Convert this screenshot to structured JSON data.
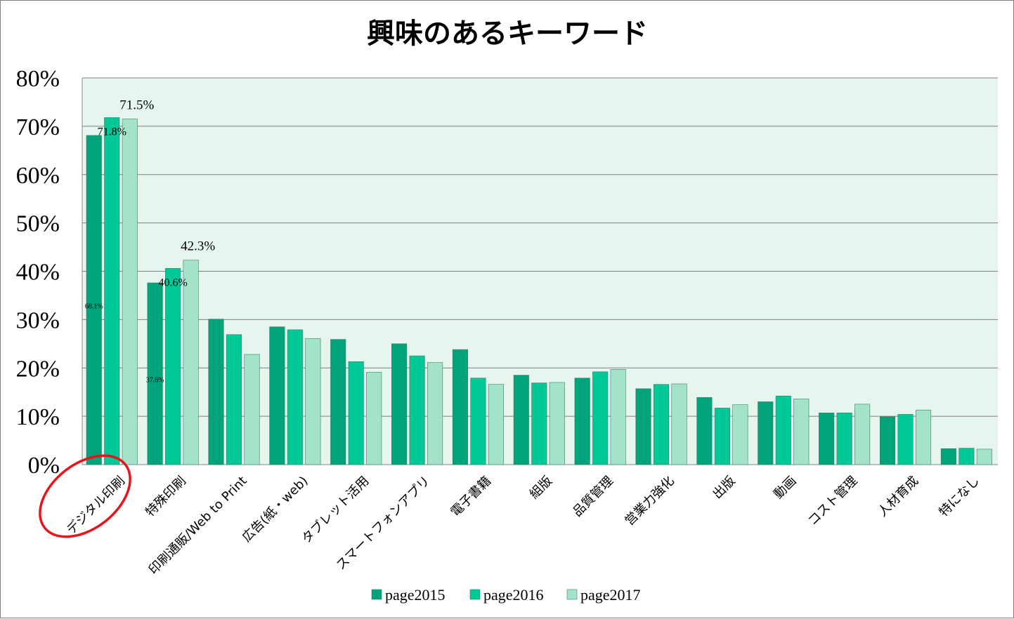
{
  "chart_data": {
    "type": "bar",
    "title": "興味のあるキーワード",
    "xlabel": "",
    "ylabel": "",
    "ylim": [
      0,
      80
    ],
    "yticks": [
      "0%",
      "10%",
      "20%",
      "30%",
      "40%",
      "50%",
      "60%",
      "70%",
      "80%"
    ],
    "grid": true,
    "legend_position": "bottom",
    "categories": [
      "デジタル印刷",
      "特殊印刷",
      "印刷通販/Web to Print",
      "広告(紙・web)",
      "タブレット活用",
      "スマートフォンアプリ",
      "電子書籍",
      "組版",
      "品質管理",
      "営業力強化",
      "出版",
      "動画",
      "コスト管理",
      "人材育成",
      "特になし"
    ],
    "series": [
      {
        "name": "page2015",
        "color": "#00a37a",
        "values": [
          68.1,
          37.6,
          30.1,
          28.5,
          25.9,
          25.0,
          23.8,
          18.5,
          17.9,
          15.7,
          13.9,
          13.0,
          10.7,
          9.9,
          3.3
        ]
      },
      {
        "name": "page2016",
        "color": "#00c997",
        "values": [
          71.8,
          40.6,
          26.9,
          27.9,
          21.3,
          22.5,
          17.9,
          16.9,
          19.2,
          16.6,
          11.7,
          14.2,
          10.7,
          10.4,
          3.4
        ]
      },
      {
        "name": "page2017",
        "color": "#a3e3ca",
        "values": [
          71.5,
          42.3,
          22.8,
          26.1,
          19.1,
          21.1,
          16.6,
          17.0,
          19.7,
          16.7,
          12.4,
          13.6,
          12.5,
          11.3,
          3.2
        ]
      }
    ],
    "data_labels": [
      {
        "series": 0,
        "category": 0,
        "text": "68.1%"
      },
      {
        "series": 1,
        "category": 0,
        "text": "71.8%"
      },
      {
        "series": 2,
        "category": 0,
        "text": "71.5%"
      },
      {
        "series": 0,
        "category": 1,
        "text": "37.6%"
      },
      {
        "series": 1,
        "category": 1,
        "text": "40.6%"
      },
      {
        "series": 2,
        "category": 1,
        "text": "42.3%"
      }
    ],
    "plot_background": "#e6f5ee",
    "gridline_color": "#7f7f7f",
    "annotation_circle_color": "#e8141c",
    "annotated_category": "デジタル印刷"
  }
}
